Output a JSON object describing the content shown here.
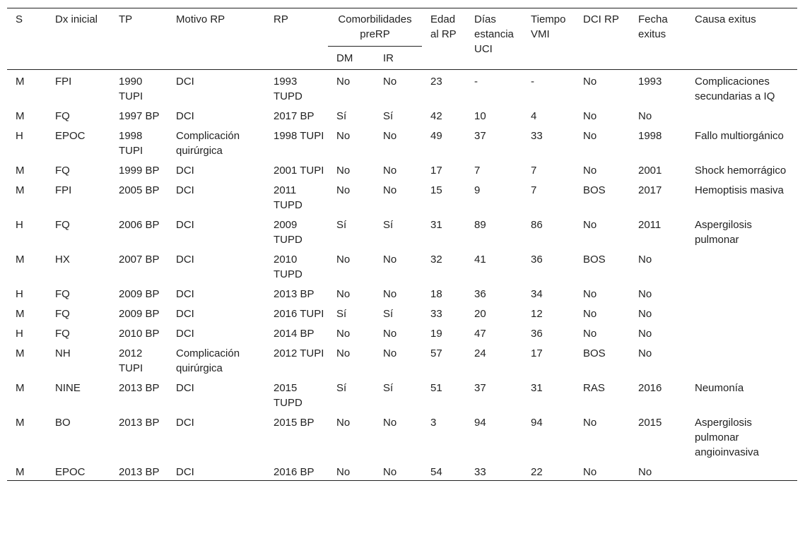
{
  "table": {
    "header": {
      "columns": [
        "S",
        "Dx inicial",
        "TP",
        "Motivo RP",
        "RP",
        "Comorbilidades preRP",
        "Edad al RP",
        "Días estancia UCI",
        "Tiempo VMI",
        "DCI RP",
        "Fecha exitus",
        "Causa exitus"
      ],
      "subcolumns": [
        "DM",
        "IR"
      ]
    },
    "rows": [
      [
        "M",
        "FPI",
        "1990 TUPI",
        "DCI",
        "1993 TUPD",
        "No",
        "No",
        "23",
        "-",
        "-",
        "No",
        "1993",
        "Complicaciones secundarias a IQ"
      ],
      [
        "M",
        "FQ",
        "1997 BP",
        "DCI",
        "2017 BP",
        "Sí",
        "Sí",
        "42",
        "10",
        "4",
        "No",
        "No",
        null
      ],
      [
        "H",
        "EPOC",
        "1998 TUPI",
        "Complicación quirúrgica",
        "1998 TUPI",
        "No",
        "No",
        "49",
        "37",
        "33",
        "No",
        "1998",
        "Fallo multiorgánico"
      ],
      [
        "M",
        "FQ",
        "1999 BP",
        "DCI",
        "2001 TUPI",
        "No",
        "No",
        "17",
        "7",
        "7",
        "No",
        "2001",
        "Shock hemorrágico"
      ],
      [
        "M",
        "FPI",
        "2005 BP",
        "DCI",
        "2011 TUPD",
        "No",
        "No",
        "15",
        "9",
        "7",
        "BOS",
        "2017",
        "Hemoptisis masiva"
      ],
      [
        "H",
        "FQ",
        "2006 BP",
        "DCI",
        "2009 TUPD",
        "Sí",
        "Sí",
        "31",
        "89",
        "86",
        "No",
        "2011",
        "Aspergilosis pulmonar"
      ],
      [
        "M",
        "HX",
        "2007 BP",
        "DCI",
        "2010 TUPD",
        "No",
        "No",
        "32",
        "41",
        "36",
        "BOS",
        "No",
        null
      ],
      [
        "H",
        "FQ",
        "2009 BP",
        "DCI",
        "2013 BP",
        "No",
        "No",
        "18",
        "36",
        "34",
        "No",
        "No",
        null
      ],
      [
        "M",
        "FQ",
        "2009 BP",
        "DCI",
        "2016 TUPI",
        "Sí",
        "Sí",
        "33",
        "20",
        "12",
        "No",
        "No",
        null
      ],
      [
        "H",
        "FQ",
        "2010 BP",
        "DCI",
        "2014 BP",
        "No",
        "No",
        "19",
        "47",
        "36",
        "No",
        "No",
        null
      ],
      [
        "M",
        "NH",
        "2012 TUPI",
        "Complicación quirúrgica",
        "2012 TUPI",
        "No",
        "No",
        "57",
        "24",
        "17",
        "BOS",
        "No",
        null
      ],
      [
        "M",
        "NINE",
        "2013 BP",
        "DCI",
        "2015 TUPD",
        "Sí",
        "Sí",
        "51",
        "37",
        "31",
        "RAS",
        "2016",
        "Neumonía"
      ],
      [
        "M",
        "BO",
        "2013 BP",
        "DCI",
        "2015 BP",
        "No",
        "No",
        "3",
        "94",
        "94",
        "No",
        "2015",
        "Aspergilosis pulmonar angioinvasiva"
      ],
      [
        "M",
        "EPOC",
        "2013 BP",
        "DCI",
        "2016 BP",
        "No",
        "No",
        "54",
        "33",
        "22",
        "No",
        "No",
        null
      ]
    ]
  }
}
